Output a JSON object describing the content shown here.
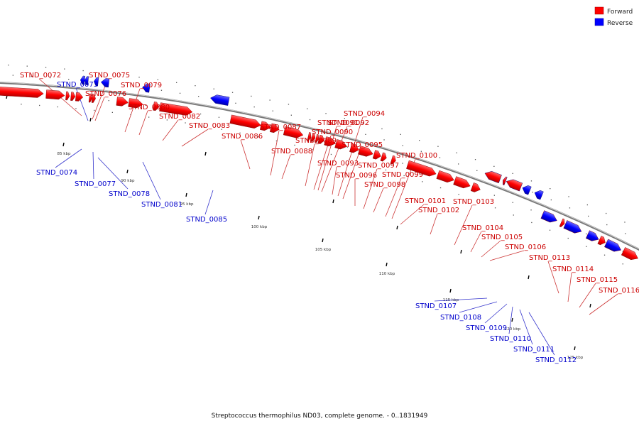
{
  "legend": [
    {
      "label": "Forward",
      "color": "#ff0000"
    },
    {
      "label": "Reverse",
      "color": "#0000ff"
    }
  ],
  "caption": "Streptococcus thermophilus ND03, complete genome. - 0..1831949",
  "genome_length": 1831949,
  "tick_labels": [
    "85 kbp",
    "90 kbp",
    "95 kbp",
    "100 kbp",
    "105 kbp",
    "110 kbp",
    "115 kbp",
    "120 kbp",
    "125 kbp"
  ],
  "colors": {
    "forward": "#ff0000",
    "reverse": "#0000ff",
    "forward_label": "#cc0000",
    "reverse_label": "#0000cc",
    "backbone": "#888888"
  },
  "genes": [
    {
      "name": "STND_0072",
      "strand": "forward"
    },
    {
      "name": "STND_0073",
      "strand": "reverse"
    },
    {
      "name": "STND_0074",
      "strand": "reverse"
    },
    {
      "name": "STND_0075",
      "strand": "forward"
    },
    {
      "name": "STND_0076",
      "strand": "forward"
    },
    {
      "name": "STND_0077",
      "strand": "reverse"
    },
    {
      "name": "STND_0078",
      "strand": "reverse"
    },
    {
      "name": "STND_0079",
      "strand": "forward"
    },
    {
      "name": "STND_0080",
      "strand": "forward"
    },
    {
      "name": "STND_0081",
      "strand": "reverse"
    },
    {
      "name": "STND_0082",
      "strand": "forward"
    },
    {
      "name": "STND_0083",
      "strand": "forward"
    },
    {
      "name": "STND_0085",
      "strand": "reverse"
    },
    {
      "name": "STND_0086",
      "strand": "forward"
    },
    {
      "name": "STND_0087",
      "strand": "forward"
    },
    {
      "name": "STND_0088",
      "strand": "forward"
    },
    {
      "name": "STND_0089",
      "strand": "forward"
    },
    {
      "name": "STND_0090",
      "strand": "forward"
    },
    {
      "name": "STND_0091",
      "strand": "forward"
    },
    {
      "name": "STND_0092",
      "strand": "forward"
    },
    {
      "name": "STND_0093",
      "strand": "forward"
    },
    {
      "name": "STND_0094",
      "strand": "forward"
    },
    {
      "name": "STND_0095",
      "strand": "forward"
    },
    {
      "name": "STND_0096",
      "strand": "forward"
    },
    {
      "name": "STND_0097",
      "strand": "forward"
    },
    {
      "name": "STND_0098",
      "strand": "forward"
    },
    {
      "name": "STND_0099",
      "strand": "forward"
    },
    {
      "name": "STND_0100",
      "strand": "forward"
    },
    {
      "name": "STND_0101",
      "strand": "forward"
    },
    {
      "name": "STND_0102",
      "strand": "forward"
    },
    {
      "name": "STND_0103",
      "strand": "forward"
    },
    {
      "name": "STND_0104",
      "strand": "forward"
    },
    {
      "name": "STND_0105",
      "strand": "forward"
    },
    {
      "name": "STND_0106",
      "strand": "forward"
    },
    {
      "name": "STND_0107",
      "strand": "reverse"
    },
    {
      "name": "STND_0108",
      "strand": "reverse"
    },
    {
      "name": "STND_0109",
      "strand": "reverse"
    },
    {
      "name": "STND_0110",
      "strand": "reverse"
    },
    {
      "name": "STND_0111",
      "strand": "reverse"
    },
    {
      "name": "STND_0112",
      "strand": "reverse"
    },
    {
      "name": "STND_0113",
      "strand": "forward"
    },
    {
      "name": "STND_0114",
      "strand": "forward"
    },
    {
      "name": "STND_0115",
      "strand": "forward"
    },
    {
      "name": "STND_0116",
      "strand": "forward"
    }
  ]
}
